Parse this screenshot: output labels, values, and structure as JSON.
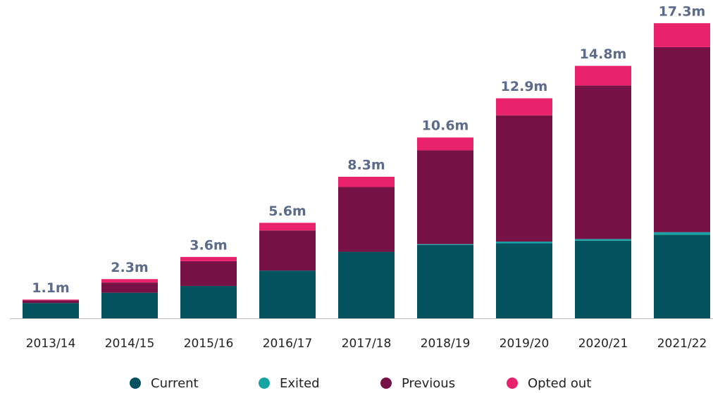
{
  "chart_data": {
    "type": "stacked_bar",
    "categories": [
      "2013/14",
      "2014/15",
      "2015/16",
      "2016/17",
      "2017/18",
      "2018/19",
      "2019/20",
      "2020/21",
      "2021/22"
    ],
    "series": [
      {
        "name": "Current",
        "color": "#03525e",
        "values": [
          0.9,
          1.5,
          1.9,
          2.8,
          3.9,
          4.3,
          4.4,
          4.55,
          4.9
        ]
      },
      {
        "name": "Exited",
        "color": "#17a3a3",
        "values": [
          0,
          0,
          0,
          0,
          0,
          0.05,
          0.1,
          0.1,
          0.15
        ]
      },
      {
        "name": "Previous",
        "color": "#761245",
        "values": [
          0.15,
          0.6,
          1.45,
          2.35,
          3.8,
          5.5,
          7.4,
          9.0,
          10.85
        ]
      },
      {
        "name": "Opted out",
        "color": "#e8236c",
        "values": [
          0.05,
          0.2,
          0.25,
          0.45,
          0.6,
          0.75,
          1.0,
          1.15,
          1.4
        ]
      }
    ],
    "totals": {
      "values": [
        1.1,
        2.3,
        3.6,
        5.6,
        8.3,
        10.6,
        12.9,
        14.8,
        17.3
      ],
      "value_labels": [
        "1.1m",
        "2.3m",
        "3.6m",
        "5.6m",
        "8.3m",
        "10.6m",
        "12.9m",
        "14.8m",
        "17.3m"
      ]
    },
    "ylim": [
      0,
      18
    ]
  }
}
